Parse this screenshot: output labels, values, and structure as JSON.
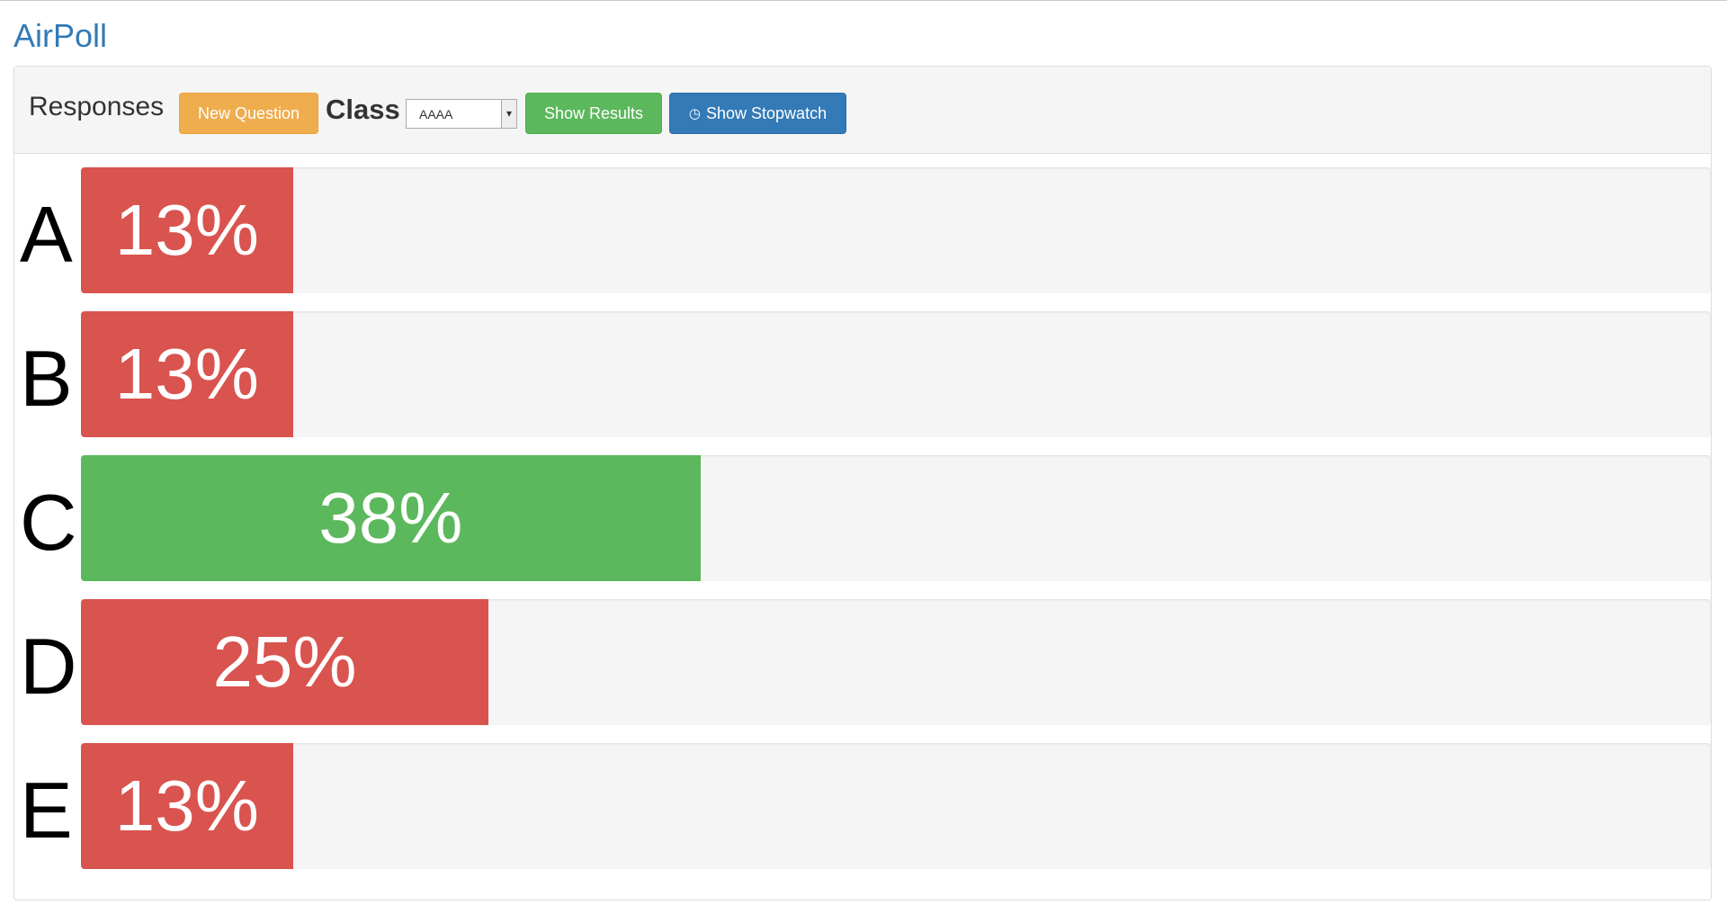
{
  "header": {
    "brand": "AirPoll"
  },
  "toolbar": {
    "title": "Responses",
    "new_question": "New Question",
    "class_label": "Class",
    "class_value": "AAAA",
    "show_results": "Show Results",
    "show_stopwatch": "Show Stopwatch"
  },
  "responses": {
    "categories": [
      "A",
      "B",
      "C",
      "D",
      "E"
    ],
    "values": [
      13,
      13,
      38,
      25,
      13
    ],
    "value_labels": [
      "13%",
      "13%",
      "38%",
      "25%",
      "13%"
    ],
    "colors": [
      "#d9534f",
      "#d9534f",
      "#5cb85c",
      "#d9534f",
      "#d9534f"
    ],
    "xlim": [
      0,
      100
    ]
  }
}
